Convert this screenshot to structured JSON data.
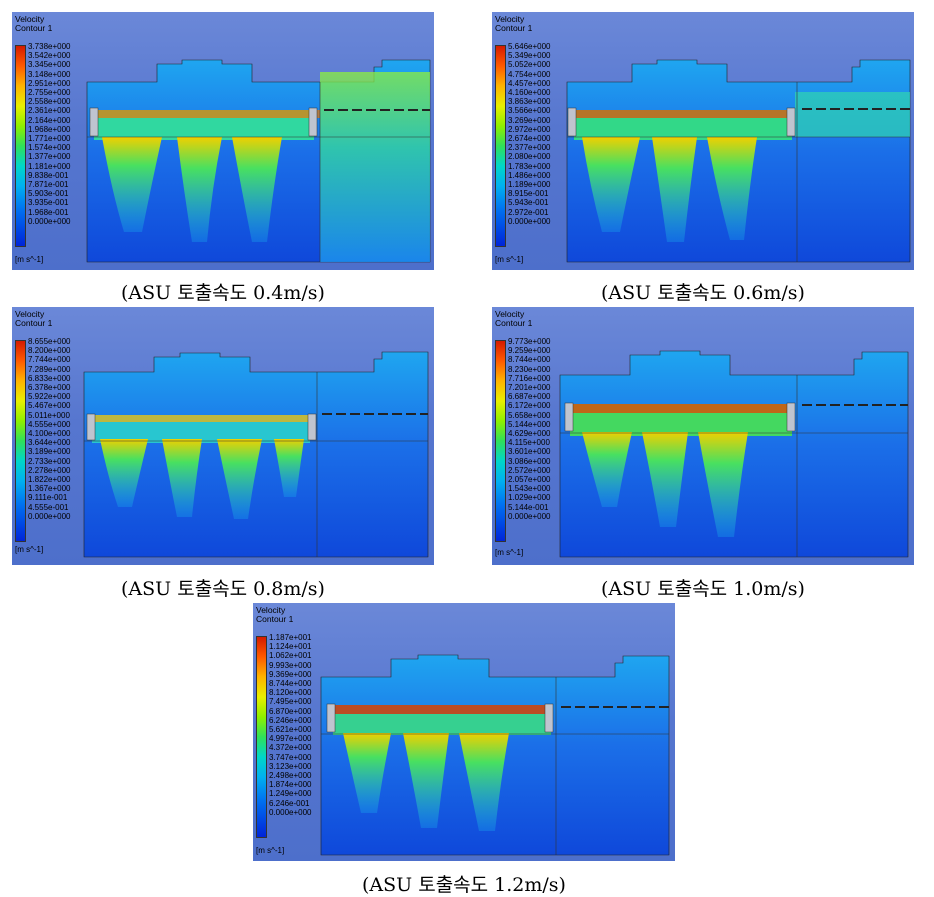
{
  "panels": [
    {
      "title": "Velocity",
      "subtitle": "Contour 1",
      "unit": "[m s^-1]",
      "ticks": [
        "3.738e+000",
        "3.542e+000",
        "3.345e+000",
        "3.148e+000",
        "2.951e+000",
        "2.755e+000",
        "2.558e+000",
        "2.361e+000",
        "2.164e+000",
        "1.968e+000",
        "1.771e+000",
        "1.574e+000",
        "1.377e+000",
        "1.181e+000",
        "9.838e-001",
        "7.871e-001",
        "5.903e-001",
        "3.935e-001",
        "1.968e-001",
        "0.000e+000"
      ],
      "caption": "(ASU 토출속도 0.4m/s)"
    },
    {
      "title": "Velocity",
      "subtitle": "Contour 1",
      "unit": "[m s^-1]",
      "ticks": [
        "5.646e+000",
        "5.349e+000",
        "5.052e+000",
        "4.754e+000",
        "4.457e+000",
        "4.160e+000",
        "3.863e+000",
        "3.566e+000",
        "3.269e+000",
        "2.972e+000",
        "2.674e+000",
        "2.377e+000",
        "2.080e+000",
        "1.783e+000",
        "1.486e+000",
        "1.189e+000",
        "8.915e-001",
        "5.943e-001",
        "2.972e-001",
        "0.000e+000"
      ],
      "caption": "(ASU 토출속도 0.6m/s)"
    },
    {
      "title": "Velocity",
      "subtitle": "Contour 1",
      "unit": "[m s^-1]",
      "ticks": [
        "8.655e+000",
        "8.200e+000",
        "7.744e+000",
        "7.289e+000",
        "6.833e+000",
        "6.378e+000",
        "5.922e+000",
        "5.467e+000",
        "5.011e+000",
        "4.555e+000",
        "4.100e+000",
        "3.644e+000",
        "3.189e+000",
        "2.733e+000",
        "2.278e+000",
        "1.822e+000",
        "1.367e+000",
        "9.111e-001",
        "4.555e-001",
        "0.000e+000"
      ],
      "caption": "(ASU 토출속도 0.8m/s)"
    },
    {
      "title": "Velocity",
      "subtitle": "Contour 1",
      "unit": "[m s^-1]",
      "ticks": [
        "9.773e+000",
        "9.259e+000",
        "8.744e+000",
        "8.230e+000",
        "7.716e+000",
        "7.201e+000",
        "6.687e+000",
        "6.172e+000",
        "5.658e+000",
        "5.144e+000",
        "4.629e+000",
        "4.115e+000",
        "3.601e+000",
        "3.086e+000",
        "2.572e+000",
        "2.057e+000",
        "1.543e+000",
        "1.029e+000",
        "5.144e-001",
        "0.000e+000"
      ],
      "caption": "(ASU 토출속도 1.0m/s)"
    },
    {
      "title": "Velocity",
      "subtitle": "Contour 1",
      "unit": "[m s^-1]",
      "ticks": [
        "1.187e+001",
        "1.124e+001",
        "1.062e+001",
        "9.993e+000",
        "9.369e+000",
        "8.744e+000",
        "8.120e+000",
        "7.495e+000",
        "6.870e+000",
        "6.246e+000",
        "5.621e+000",
        "4.997e+000",
        "4.372e+000",
        "3.747e+000",
        "3.123e+000",
        "2.498e+000",
        "1.874e+000",
        "1.249e+000",
        "6.246e-001",
        "0.000e+000"
      ],
      "caption": "(ASU 토출속도 1.2m/s)"
    }
  ],
  "colors": {
    "background": "#4d6fcb",
    "domain_low": "#1b3fd6",
    "mid": "#12c7e0",
    "high": "#f2e800",
    "max": "#e01b00"
  }
}
